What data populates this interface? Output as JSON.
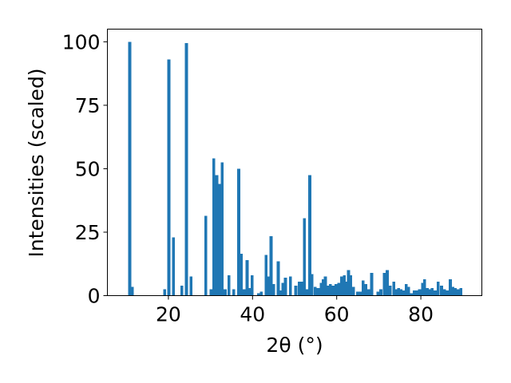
{
  "chart_data": {
    "type": "bar",
    "xlabel": "2θ (°)",
    "ylabel": "Intensities (scaled)",
    "xlim": [
      5.5,
      94.5
    ],
    "ylim": [
      0,
      105
    ],
    "xticks": [
      20,
      40,
      60,
      80
    ],
    "yticks": [
      0,
      25,
      50,
      75,
      100
    ],
    "bar_color": "#1f77b4",
    "bar_width": 0.7,
    "grid": false,
    "x": [
      10.8,
      11.4,
      19.1,
      20.1,
      21.2,
      23.2,
      24.3,
      25.4,
      28.9,
      30.1,
      30.8,
      31.5,
      32.1,
      32.8,
      33.5,
      34.4,
      35.5,
      36.7,
      37.3,
      38.0,
      38.7,
      39.3,
      39.9,
      41.4,
      42.1,
      43.2,
      43.8,
      44.4,
      45.0,
      46.1,
      46.6,
      47.2,
      47.8,
      49.0,
      50.3,
      51.1,
      51.6,
      52.3,
      52.9,
      53.6,
      54.1,
      54.9,
      55.6,
      56.3,
      56.8,
      57.3,
      57.8,
      58.5,
      59.1,
      59.8,
      60.5,
      61.2,
      61.8,
      62.3,
      62.8,
      63.3,
      64.0,
      65.0,
      65.7,
      66.3,
      66.9,
      67.6,
      68.3,
      69.8,
      70.5,
      71.3,
      72.0,
      72.7,
      73.6,
      74.1,
      74.7,
      75.3,
      75.9,
      76.5,
      77.1,
      77.8,
      78.4,
      79.1,
      79.7,
      80.4,
      80.9,
      81.5,
      82.1,
      82.7,
      83.4,
      84.1,
      84.9,
      85.6,
      86.3,
      87.0,
      87.6,
      88.2,
      88.9,
      89.5
    ],
    "values": [
      100,
      3.5,
      2.5,
      93,
      23,
      4,
      99.5,
      7.5,
      31.5,
      2.5,
      54,
      47.5,
      44,
      52.5,
      2.5,
      8,
      2.5,
      50,
      16.5,
      2.5,
      14,
      3,
      8,
      1,
      1.5,
      16,
      7.5,
      23.5,
      4.5,
      13.5,
      2,
      5,
      7,
      7.5,
      4,
      5.5,
      5.5,
      30.5,
      2.5,
      47.5,
      8.5,
      3.5,
      3,
      5,
      6.5,
      7.5,
      4,
      4.5,
      4,
      4.5,
      5,
      7.5,
      8,
      5.5,
      10,
      8,
      3.5,
      1.5,
      1.5,
      6,
      4.5,
      2.5,
      9,
      1.5,
      2.5,
      9,
      10,
      4,
      5.5,
      2.5,
      3,
      2.5,
      2,
      4.5,
      3.5,
      1,
      2,
      2,
      2.5,
      5,
      6.5,
      3,
      2.5,
      3,
      2,
      5.5,
      4,
      2.5,
      2,
      6.5,
      3.5,
      3,
      2.5,
      3
    ]
  }
}
